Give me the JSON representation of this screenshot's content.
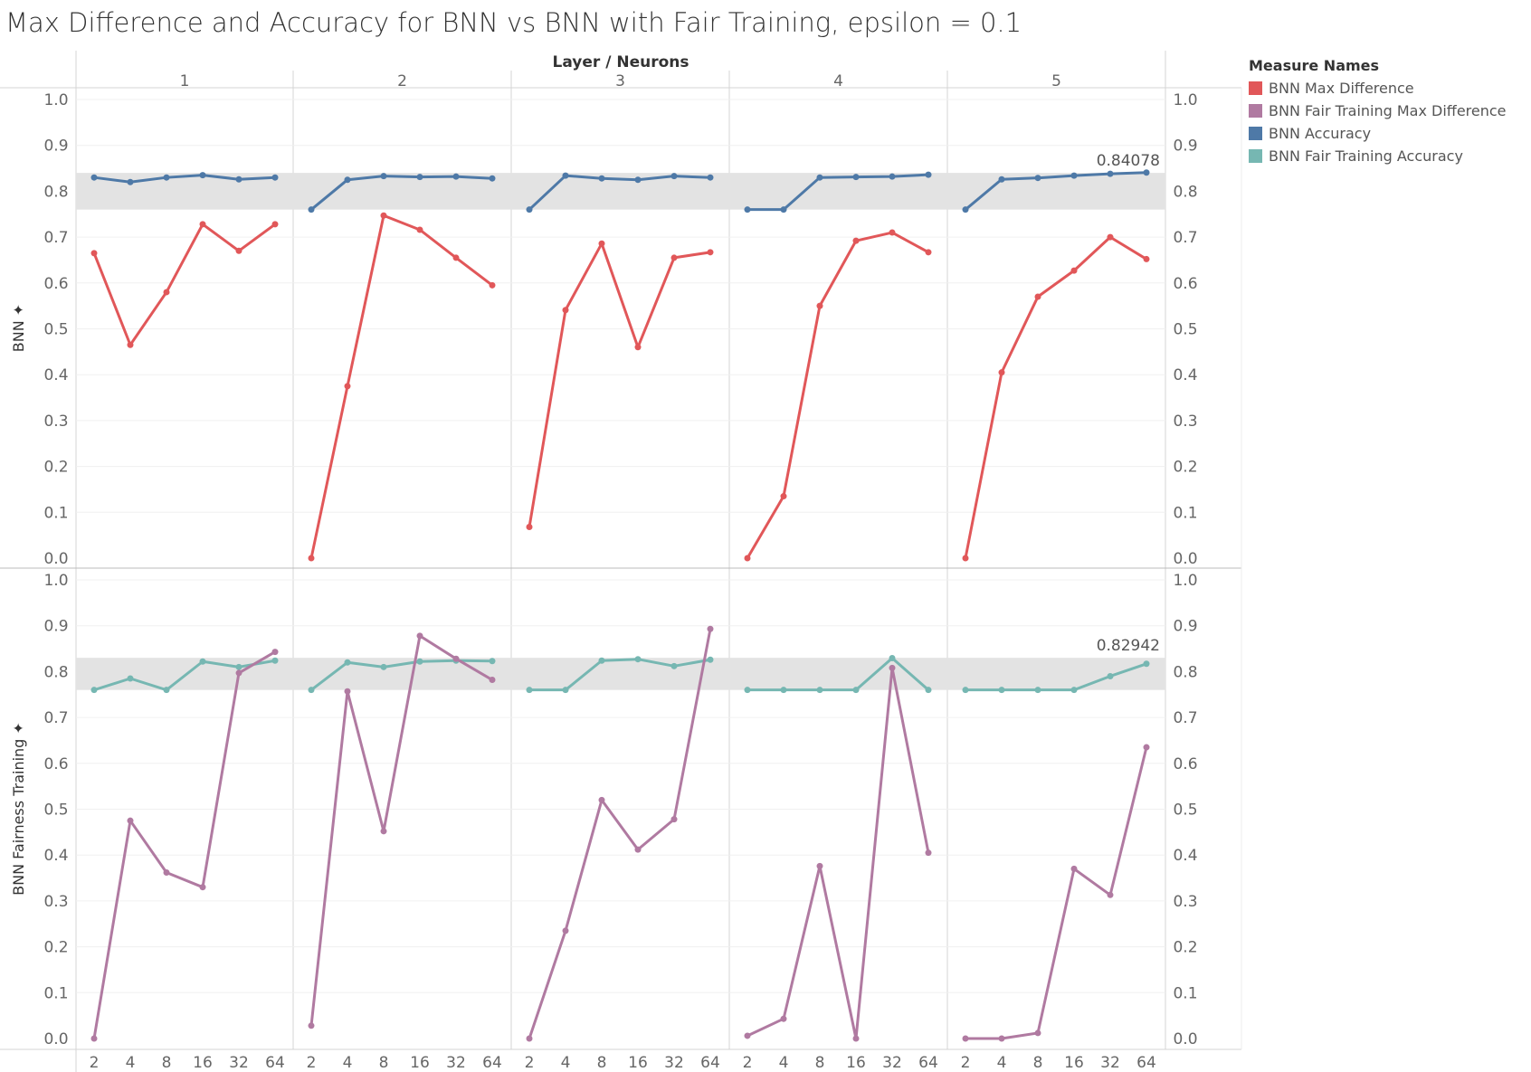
{
  "title": "Max Difference and Accuracy for BNN vs BNN with Fair Training, epsilon = 0.1",
  "legend": {
    "title": "Measure Names",
    "items": [
      {
        "label": "BNN Max Difference",
        "color": "#e15759"
      },
      {
        "label": "BNN Fair Training Max Difference",
        "color": "#b07aa1"
      },
      {
        "label": "BNN Accuracy",
        "color": "#4e79a7"
      },
      {
        "label": "BNN Fair Training Accuracy",
        "color": "#76b7b2"
      }
    ]
  },
  "chart_data": {
    "type": "line",
    "column_header": "Layer / Neurons",
    "columns": [
      "1",
      "2",
      "3",
      "4",
      "5"
    ],
    "x": [
      "2",
      "4",
      "8",
      "16",
      "32",
      "64"
    ],
    "ylim": [
      0,
      1.0
    ],
    "y_ticks": [
      "0.0",
      "0.1",
      "0.2",
      "0.3",
      "0.4",
      "0.5",
      "0.6",
      "0.7",
      "0.8",
      "0.9",
      "1.0"
    ],
    "rows": [
      {
        "label": "BNN",
        "pin": "✦",
        "band": [
          0.76,
          0.84
        ],
        "max_label": "0.84078",
        "series": [
          {
            "name": "BNN Accuracy",
            "color": "#4e79a7",
            "values": [
              [
                0.83,
                0.82,
                0.83,
                0.835,
                0.826,
                0.83
              ],
              [
                0.76,
                0.825,
                0.833,
                0.831,
                0.832,
                0.828
              ],
              [
                0.76,
                0.834,
                0.828,
                0.825,
                0.833,
                0.83
              ],
              [
                0.76,
                0.76,
                0.83,
                0.831,
                0.832,
                0.836
              ],
              [
                0.76,
                0.826,
                0.829,
                0.834,
                0.838,
                0.84078
              ]
            ]
          },
          {
            "name": "BNN Max Difference",
            "color": "#e15759",
            "values": [
              [
                0.665,
                0.465,
                0.58,
                0.728,
                0.67,
                0.728
              ],
              [
                0.0,
                0.375,
                0.747,
                0.716,
                0.655,
                0.595
              ],
              [
                0.068,
                0.541,
                0.686,
                0.46,
                0.655,
                0.667
              ],
              [
                0.0,
                0.135,
                0.55,
                0.692,
                0.71,
                0.667
              ],
              [
                0.0,
                0.405,
                0.57,
                0.627,
                0.7,
                0.652
              ]
            ]
          }
        ]
      },
      {
        "label": "BNN Fairness Training",
        "pin": "✦",
        "band": [
          0.76,
          0.83
        ],
        "max_label": "0.82942",
        "series": [
          {
            "name": "BNN Fair Training Accuracy",
            "color": "#76b7b2",
            "values": [
              [
                0.76,
                0.785,
                0.76,
                0.822,
                0.81,
                0.824
              ],
              [
                0.76,
                0.82,
                0.81,
                0.822,
                0.824,
                0.823
              ],
              [
                0.76,
                0.76,
                0.824,
                0.827,
                0.812,
                0.826
              ],
              [
                0.76,
                0.76,
                0.76,
                0.76,
                0.82942,
                0.76
              ],
              [
                0.76,
                0.76,
                0.76,
                0.76,
                0.79,
                0.817
              ]
            ]
          },
          {
            "name": "BNN Fair Training Max Difference",
            "color": "#b07aa1",
            "values": [
              [
                0.0,
                0.475,
                0.362,
                0.33,
                0.797,
                0.843
              ],
              [
                0.028,
                0.757,
                0.452,
                0.878,
                0.828,
                0.782
              ],
              [
                0.0,
                0.235,
                0.52,
                0.412,
                0.478,
                0.893
              ],
              [
                0.006,
                0.043,
                0.376,
                0.0,
                0.808,
                0.405
              ],
              [
                0.0,
                0.0,
                0.012,
                0.37,
                0.313,
                0.635
              ]
            ]
          }
        ]
      }
    ]
  }
}
